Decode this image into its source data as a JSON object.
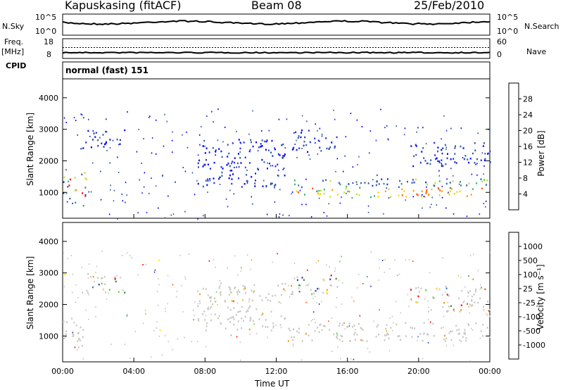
{
  "header": {
    "station": "Kapuskasing (fitACF)",
    "beam": "Beam 08",
    "date": "25/Feb/2010"
  },
  "top_panels": {
    "nsky_label": "N.Sky",
    "nsky_ticks": [
      "10^5",
      "10^0"
    ],
    "nsearch_label": "N.Search",
    "nsearch_ticks": [
      "10^5",
      "10^0"
    ],
    "freq_label": "Freq.",
    "freq_unit": "[MHz]",
    "freq_ticks": [
      "18",
      "8"
    ],
    "nave_label": "Nave",
    "nave_ticks": [
      "60",
      "0"
    ],
    "cpid_label": "CPID",
    "cpid_value": "normal (fast) 151"
  },
  "chart_data": [
    {
      "type": "heatmap",
      "name": "power",
      "ylabel": "Slant Range [km]",
      "ylim": [
        180,
        4600
      ],
      "yticks": [
        "1000",
        "2000",
        "3000",
        "4000"
      ],
      "colorbar_label": "Power [dB]",
      "colorbar_ticks": [
        "28",
        "24",
        "20",
        "16",
        "12",
        "8",
        "4"
      ],
      "colorbar_colors": [
        "#ff0000",
        "#ff5a00",
        "#ff9800",
        "#ffd100",
        "#b6e22e",
        "#3fb86a",
        "#3a8f7a",
        "#2f5ea6",
        "#1f2fd6",
        "#0000ff"
      ],
      "echo_regions": [
        {
          "t0": 0.0,
          "t1": 1.3,
          "r0": 600,
          "r1": 1650,
          "level": "mixed"
        },
        {
          "t0": 1.0,
          "t1": 3.5,
          "r0": 2400,
          "r1": 3000,
          "level": "low"
        },
        {
          "t0": 7.5,
          "t1": 12.5,
          "r0": 1200,
          "r1": 2700,
          "level": "low"
        },
        {
          "t0": 12.6,
          "t1": 24.0,
          "r0": 850,
          "r1": 1450,
          "level": "high"
        },
        {
          "t0": 12.8,
          "t1": 15.5,
          "r0": 2300,
          "r1": 3000,
          "level": "low"
        },
        {
          "t0": 19.5,
          "t1": 24.0,
          "r0": 1800,
          "r1": 2600,
          "level": "low"
        }
      ]
    },
    {
      "type": "heatmap",
      "name": "velocity",
      "ylabel": "Slant Range [km]",
      "xlabel": "Time UT",
      "xticks": [
        "00:00",
        "04:00",
        "08:00",
        "12:00",
        "16:00",
        "20:00",
        "00:00"
      ],
      "ylim": [
        180,
        4600
      ],
      "yticks": [
        "1000",
        "2000",
        "3000",
        "4000"
      ],
      "colorbar_label": "Velocity [m s⁻¹]",
      "colorbar_ticks": [
        "1000",
        "500",
        "100",
        "25",
        "-25",
        "-100",
        "-500",
        "-1000"
      ],
      "colorbar_colors": [
        "#2a3fb8",
        "#3c7cc8",
        "#2f8f3a",
        "#5fcf3a",
        "#c8c8c0",
        "#c8c8c0",
        "#ffd000",
        "#ff9a00",
        "#ff5a00",
        "#ff0000"
      ],
      "echo_regions": [
        {
          "t0": 0.0,
          "t1": 1.3,
          "r0": 600,
          "r1": 1650,
          "level": "ground"
        },
        {
          "t0": 1.0,
          "t1": 3.5,
          "r0": 2400,
          "r1": 3000,
          "level": "mixed"
        },
        {
          "t0": 7.5,
          "t1": 12.5,
          "r0": 1200,
          "r1": 2700,
          "level": "ground"
        },
        {
          "t0": 12.6,
          "t1": 24.0,
          "r0": 850,
          "r1": 1450,
          "level": "ground"
        },
        {
          "t0": 12.8,
          "t1": 15.5,
          "r0": 2300,
          "r1": 3000,
          "level": "mixed"
        },
        {
          "t0": 19.5,
          "t1": 24.0,
          "r0": 1800,
          "r1": 2600,
          "level": "mixed"
        }
      ]
    }
  ]
}
